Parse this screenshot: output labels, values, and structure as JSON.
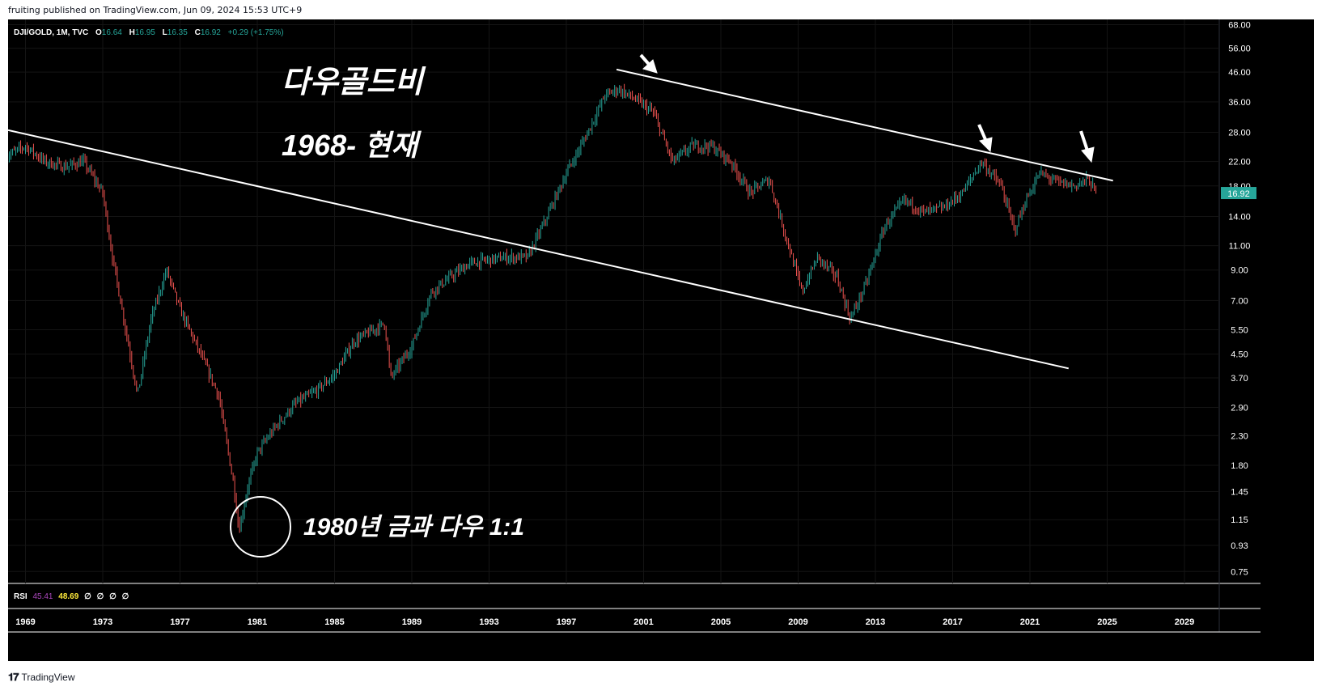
{
  "attribution": "fruiting published on TradingView.com, Jun 09, 2024 15:53 UTC+9",
  "footer": {
    "brand": "TradingView",
    "logo": "tradingview-logo"
  },
  "header": {
    "symbol": "DJI/GOLD, 1M, TVC",
    "o_label": "O",
    "o_value": "16.64",
    "h_label": "H",
    "h_value": "16.95",
    "l_label": "L",
    "l_value": "16.35",
    "c_label": "C",
    "c_value": "16.92",
    "change": "+0.29 (+1.75%)"
  },
  "annotations": {
    "title": "다우골드비",
    "subtitle": "1968- 현재",
    "low_note": "1980년 금과 다우 1:1"
  },
  "last_price": "16.92",
  "rsi": {
    "label": "RSI",
    "value1": "45.41",
    "value2": "48.69",
    "extras": [
      "∅",
      "∅",
      "∅",
      "∅"
    ]
  },
  "colors": {
    "up": "#26a69a",
    "down": "#ef5350",
    "price_badge": "#26a69a",
    "rsi_value1": "#ab47bc",
    "rsi_value2": "#ffeb3b",
    "trendline": "#ffffff"
  },
  "chart_data": {
    "type": "candlestick",
    "interval": "1M",
    "y_scale": "log",
    "ylim": [
      0.68,
      71
    ],
    "y_ticks": [
      "68.00",
      "56.00",
      "46.00",
      "36.00",
      "28.00",
      "22.00",
      "18.00",
      "14.00",
      "11.00",
      "9.00",
      "7.00",
      "5.50",
      "4.50",
      "3.70",
      "2.90",
      "2.30",
      "1.80",
      "1.45",
      "1.15",
      "0.93",
      "0.75"
    ],
    "x_ticks": [
      "1969",
      "1973",
      "1977",
      "1981",
      "1985",
      "1989",
      "1993",
      "1997",
      "2001",
      "2005",
      "2009",
      "2013",
      "2017",
      "2021",
      "2025",
      "2029"
    ],
    "xlim": [
      1968.1,
      2030.8
    ],
    "series": [
      {
        "x": [
          1968.0,
          1969.0,
          1970.0,
          1971.0,
          1972.0,
          1973.0,
          1973.5,
          1974.0,
          1974.8,
          1975.5,
          1976.3,
          1977.0,
          1978.0,
          1979.0,
          1979.8,
          1980.05,
          1980.5,
          1981.0,
          1982.0,
          1983.0,
          1984.0,
          1985.0,
          1986.0,
          1987.6,
          1987.9,
          1989.0,
          1990.0,
          1991.0,
          1992.0,
          1993.0,
          1994.0,
          1995.0,
          1996.0,
          1997.0,
          1998.0,
          1999.0,
          1999.7,
          2000.5,
          2001.5,
          2002.5,
          2003.5,
          2004.5,
          2005.5,
          2006.5,
          2007.5,
          2008.5,
          2009.2,
          2010.0,
          2011.0,
          2011.7,
          2012.5,
          2013.5,
          2014.5,
          2015.5,
          2016.5,
          2017.5,
          2018.5,
          2019.5,
          2020.2,
          2020.8,
          2021.5,
          2022.5,
          2023.3,
          2024.0,
          2024.45
        ],
        "y": [
          23,
          25,
          22,
          21,
          22,
          17,
          10,
          6.5,
          3.2,
          6,
          9,
          6.5,
          4.6,
          3.2,
          1.5,
          1.05,
          1.5,
          2.0,
          2.5,
          3.0,
          3.3,
          3.8,
          5.0,
          5.8,
          3.7,
          4.8,
          7.5,
          8.5,
          9.5,
          9.8,
          10.0,
          10.0,
          14.0,
          20.0,
          27.0,
          38.0,
          40.0,
          37.0,
          33.0,
          22.0,
          25.0,
          25.0,
          22.0,
          17.0,
          19.0,
          11.0,
          7.5,
          10.0,
          8.5,
          6.0,
          8.0,
          13.0,
          16.0,
          14.5,
          15.0,
          17.0,
          22.0,
          18.0,
          12.5,
          16.0,
          20.0,
          18.5,
          18.0,
          19.0,
          16.92
        ]
      }
    ],
    "trendlines": [
      {
        "x": [
          1968.1,
          2023.0
        ],
        "y": [
          28.5,
          4.0
        ]
      },
      {
        "x": [
          1999.6,
          2025.3
        ],
        "y": [
          47.0,
          18.8
        ]
      }
    ],
    "annotation_arrows": 3,
    "annotation_circle_at": {
      "x": 1980.05,
      "y": 1.2
    }
  }
}
